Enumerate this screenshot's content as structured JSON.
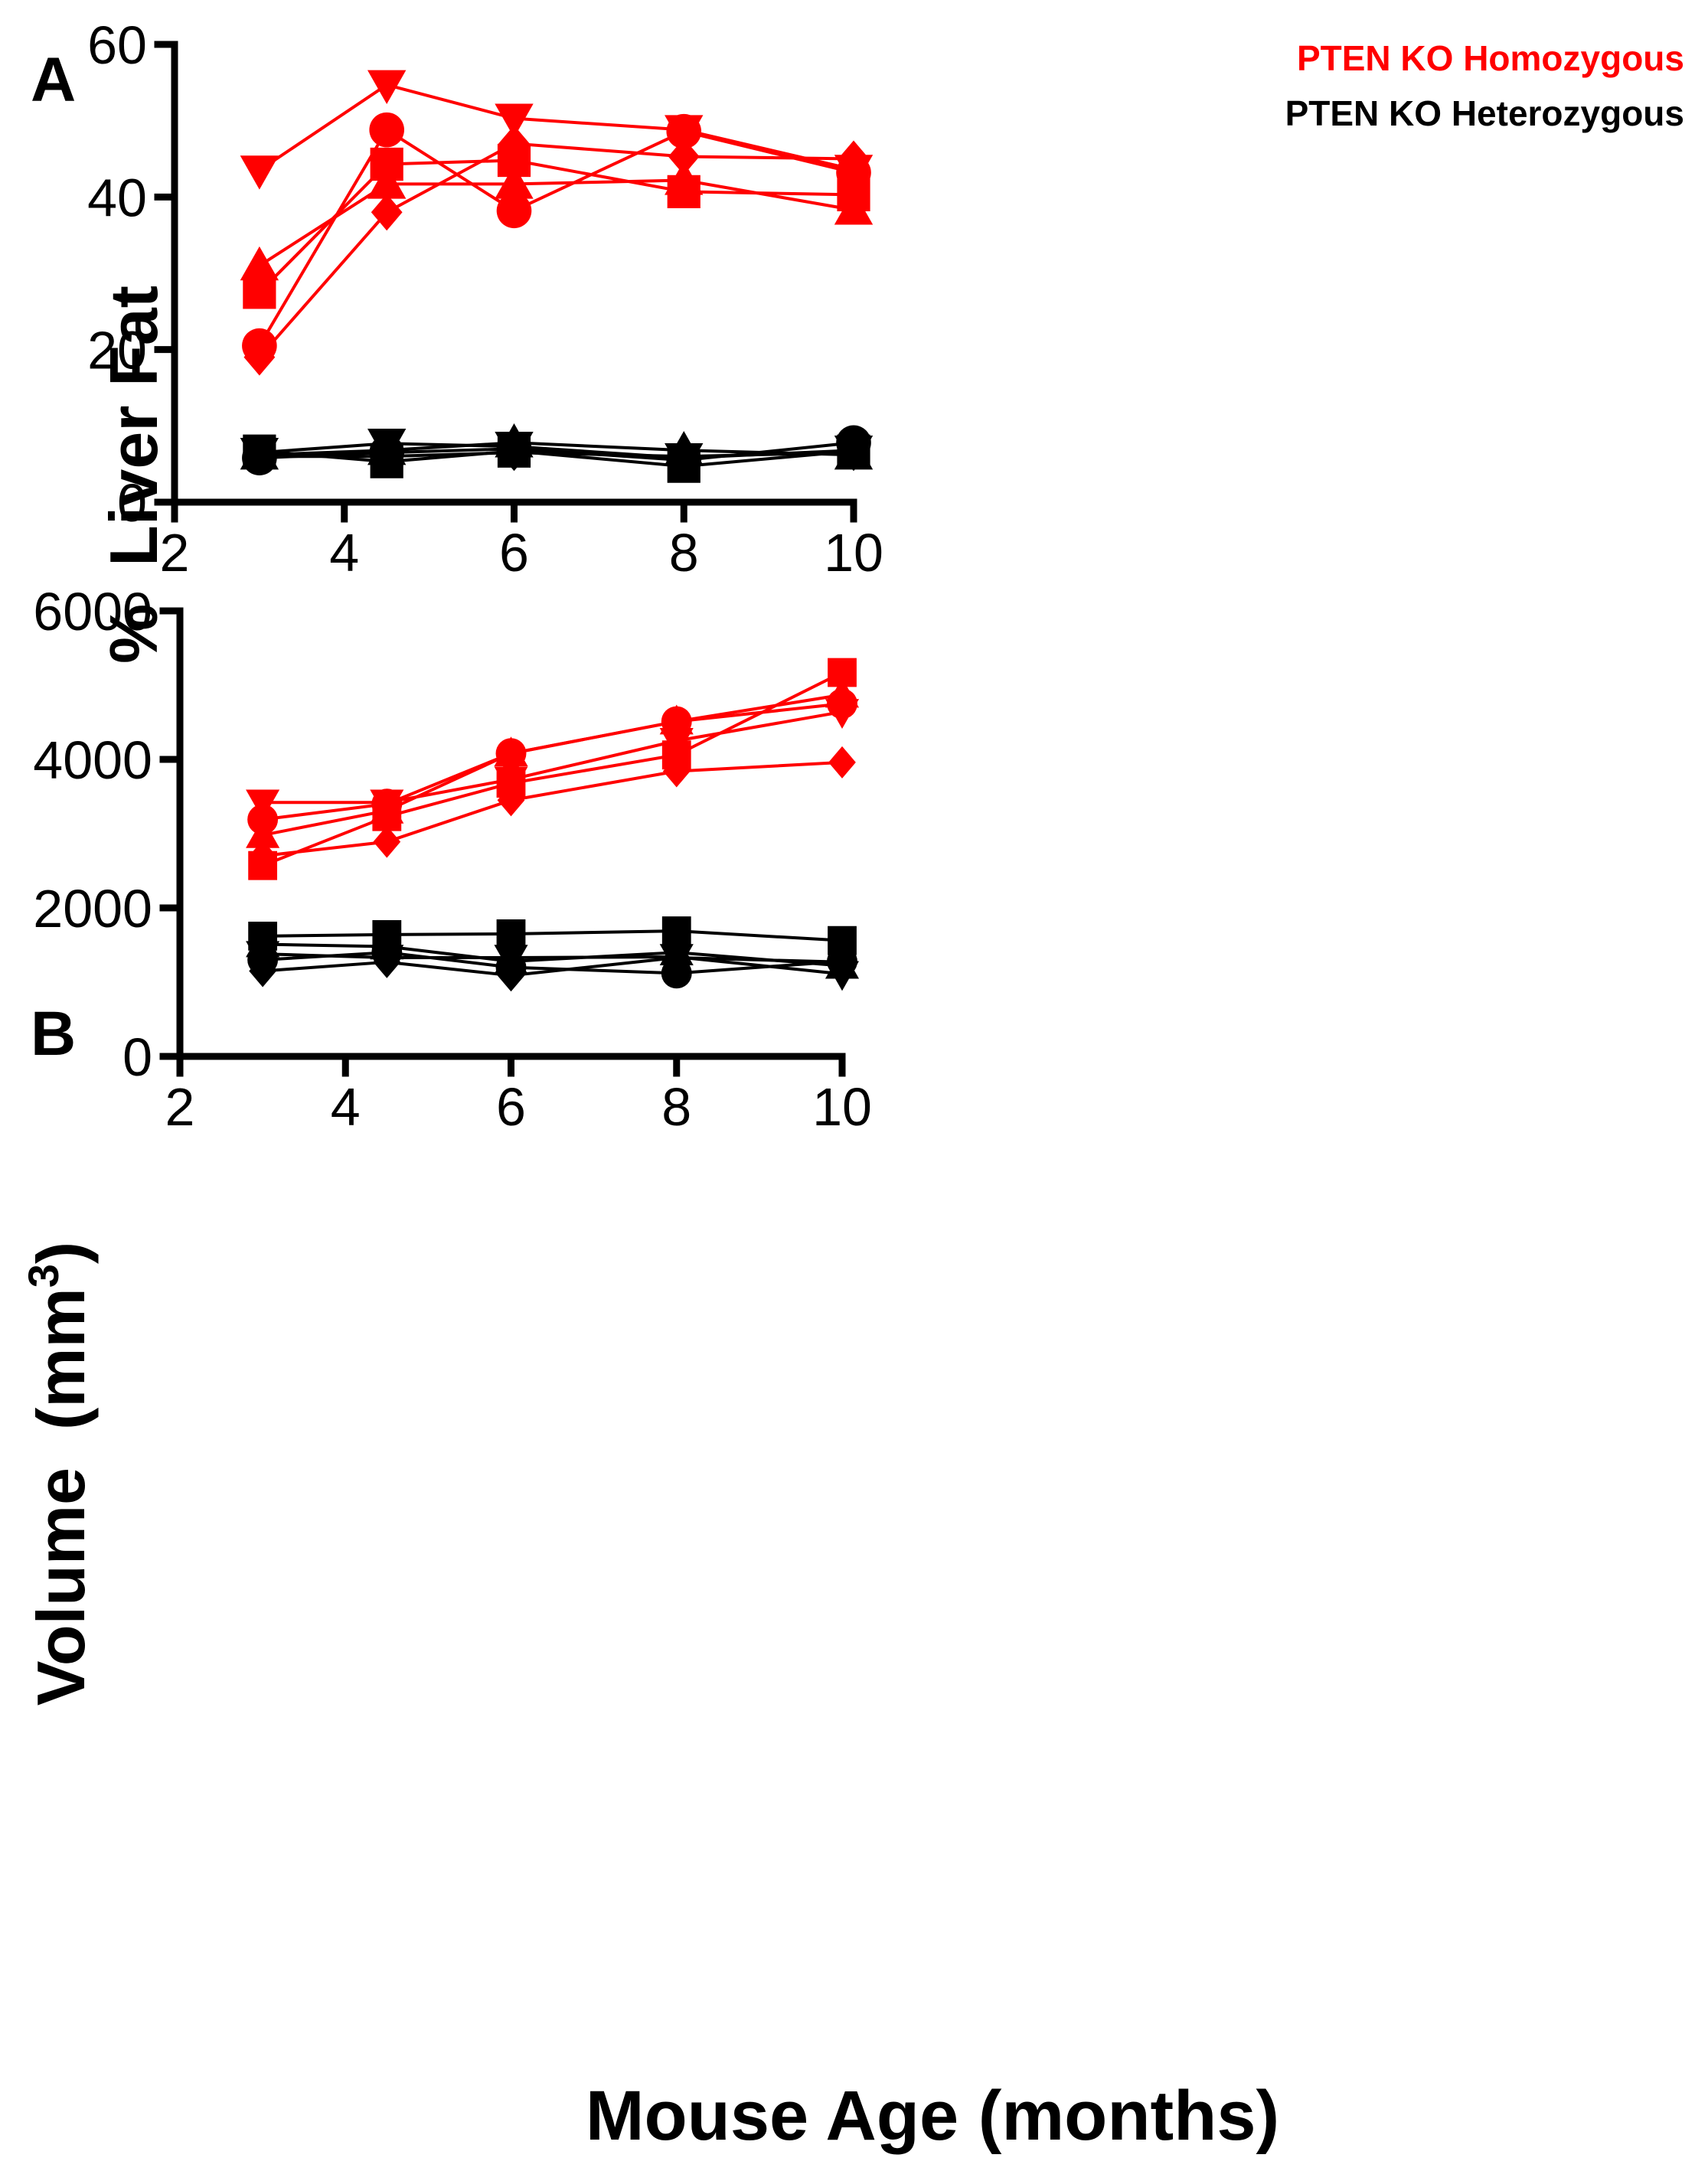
{
  "colors": {
    "homozygous": "#ff0000",
    "heterozygous": "#000000"
  },
  "legend": {
    "homozygous": "PTEN KO Homozygous",
    "heterozygous": "PTEN KO Heterozygous"
  },
  "x_axis_title": "Mouse Age (months)",
  "chart_data": [
    {
      "panel": "A",
      "type": "line",
      "ylabel": "%  Liver Fat",
      "xlabel": "",
      "xlim": [
        2,
        10
      ],
      "ylim": [
        0,
        60
      ],
      "xticks": [
        "2",
        "4",
        "6",
        "8",
        "10"
      ],
      "yticks": [
        "0",
        "20",
        "40",
        "60"
      ],
      "x": [
        3,
        4.5,
        6,
        8,
        10
      ],
      "series": [
        {
          "group": "homozygous",
          "marker": "triangle-down",
          "values": [
            43.5,
            54.7,
            50.3,
            48.8,
            43.6
          ]
        },
        {
          "group": "homozygous",
          "marker": "circle",
          "values": [
            20.5,
            48.8,
            38.2,
            48.6,
            43.2
          ]
        },
        {
          "group": "homozygous",
          "marker": "diamond",
          "values": [
            19.0,
            38.0,
            47.0,
            45.3,
            45.0
          ]
        },
        {
          "group": "homozygous",
          "marker": "square",
          "values": [
            27.5,
            44.3,
            44.8,
            40.7,
            40.3
          ]
        },
        {
          "group": "homozygous",
          "marker": "triangle-up",
          "values": [
            31.0,
            41.7,
            41.7,
            42.2,
            38.3
          ]
        },
        {
          "group": "heterozygous",
          "marker": "triangle-down",
          "values": [
            6.5,
            7.7,
            7.3,
            5.8,
            6.8
          ]
        },
        {
          "group": "heterozygous",
          "marker": "circle",
          "values": [
            5.8,
            6.5,
            7.0,
            5.5,
            7.8
          ]
        },
        {
          "group": "heterozygous",
          "marker": "diamond",
          "values": [
            6.0,
            6.0,
            6.5,
            6.0,
            6.5
          ]
        },
        {
          "group": "heterozygous",
          "marker": "square",
          "values": [
            6.7,
            5.3,
            6.7,
            4.7,
            6.7
          ]
        },
        {
          "group": "heterozygous",
          "marker": "triangle-up",
          "values": [
            6.2,
            6.8,
            7.8,
            6.8,
            6.2
          ]
        }
      ]
    },
    {
      "panel": "B",
      "type": "line",
      "ylabel": "Volume  (mm",
      "ylabel_sup": "3",
      "ylabel_close": ")",
      "xlabel": "Mouse Age (months)",
      "xlim": [
        2,
        10
      ],
      "ylim": [
        0,
        6000
      ],
      "xticks": [
        "2",
        "4",
        "6",
        "8",
        "10"
      ],
      "yticks": [
        "0",
        "2000",
        "4000",
        "6000"
      ],
      "x": [
        3,
        4.5,
        6,
        8,
        10
      ],
      "series": [
        {
          "group": "homozygous",
          "marker": "square",
          "values": [
            2570,
            3230,
            3680,
            4060,
            5170
          ]
        },
        {
          "group": "homozygous",
          "marker": "circle",
          "values": [
            3190,
            3400,
            4080,
            4510,
            4750
          ]
        },
        {
          "group": "homozygous",
          "marker": "triangle-down",
          "values": [
            3420,
            3420,
            3730,
            4250,
            4640
          ]
        },
        {
          "group": "homozygous",
          "marker": "triangle-up",
          "values": [
            2980,
            3310,
            4080,
            4510,
            4870
          ]
        },
        {
          "group": "homozygous",
          "marker": "diamond",
          "values": [
            2700,
            2890,
            3450,
            3840,
            3960
          ]
        },
        {
          "group": "heterozygous",
          "marker": "square",
          "values": [
            1620,
            1640,
            1650,
            1690,
            1560
          ]
        },
        {
          "group": "heterozygous",
          "marker": "triangle-down",
          "values": [
            1380,
            1330,
            1330,
            1340,
            1110
          ]
        },
        {
          "group": "heterozygous",
          "marker": "triangle-up",
          "values": [
            1510,
            1480,
            1280,
            1400,
            1220
          ]
        },
        {
          "group": "heterozygous",
          "marker": "circle",
          "values": [
            1300,
            1400,
            1200,
            1120,
            1280
          ]
        },
        {
          "group": "heterozygous",
          "marker": "diamond",
          "values": [
            1150,
            1270,
            1090,
            1330,
            1270
          ]
        }
      ]
    }
  ]
}
